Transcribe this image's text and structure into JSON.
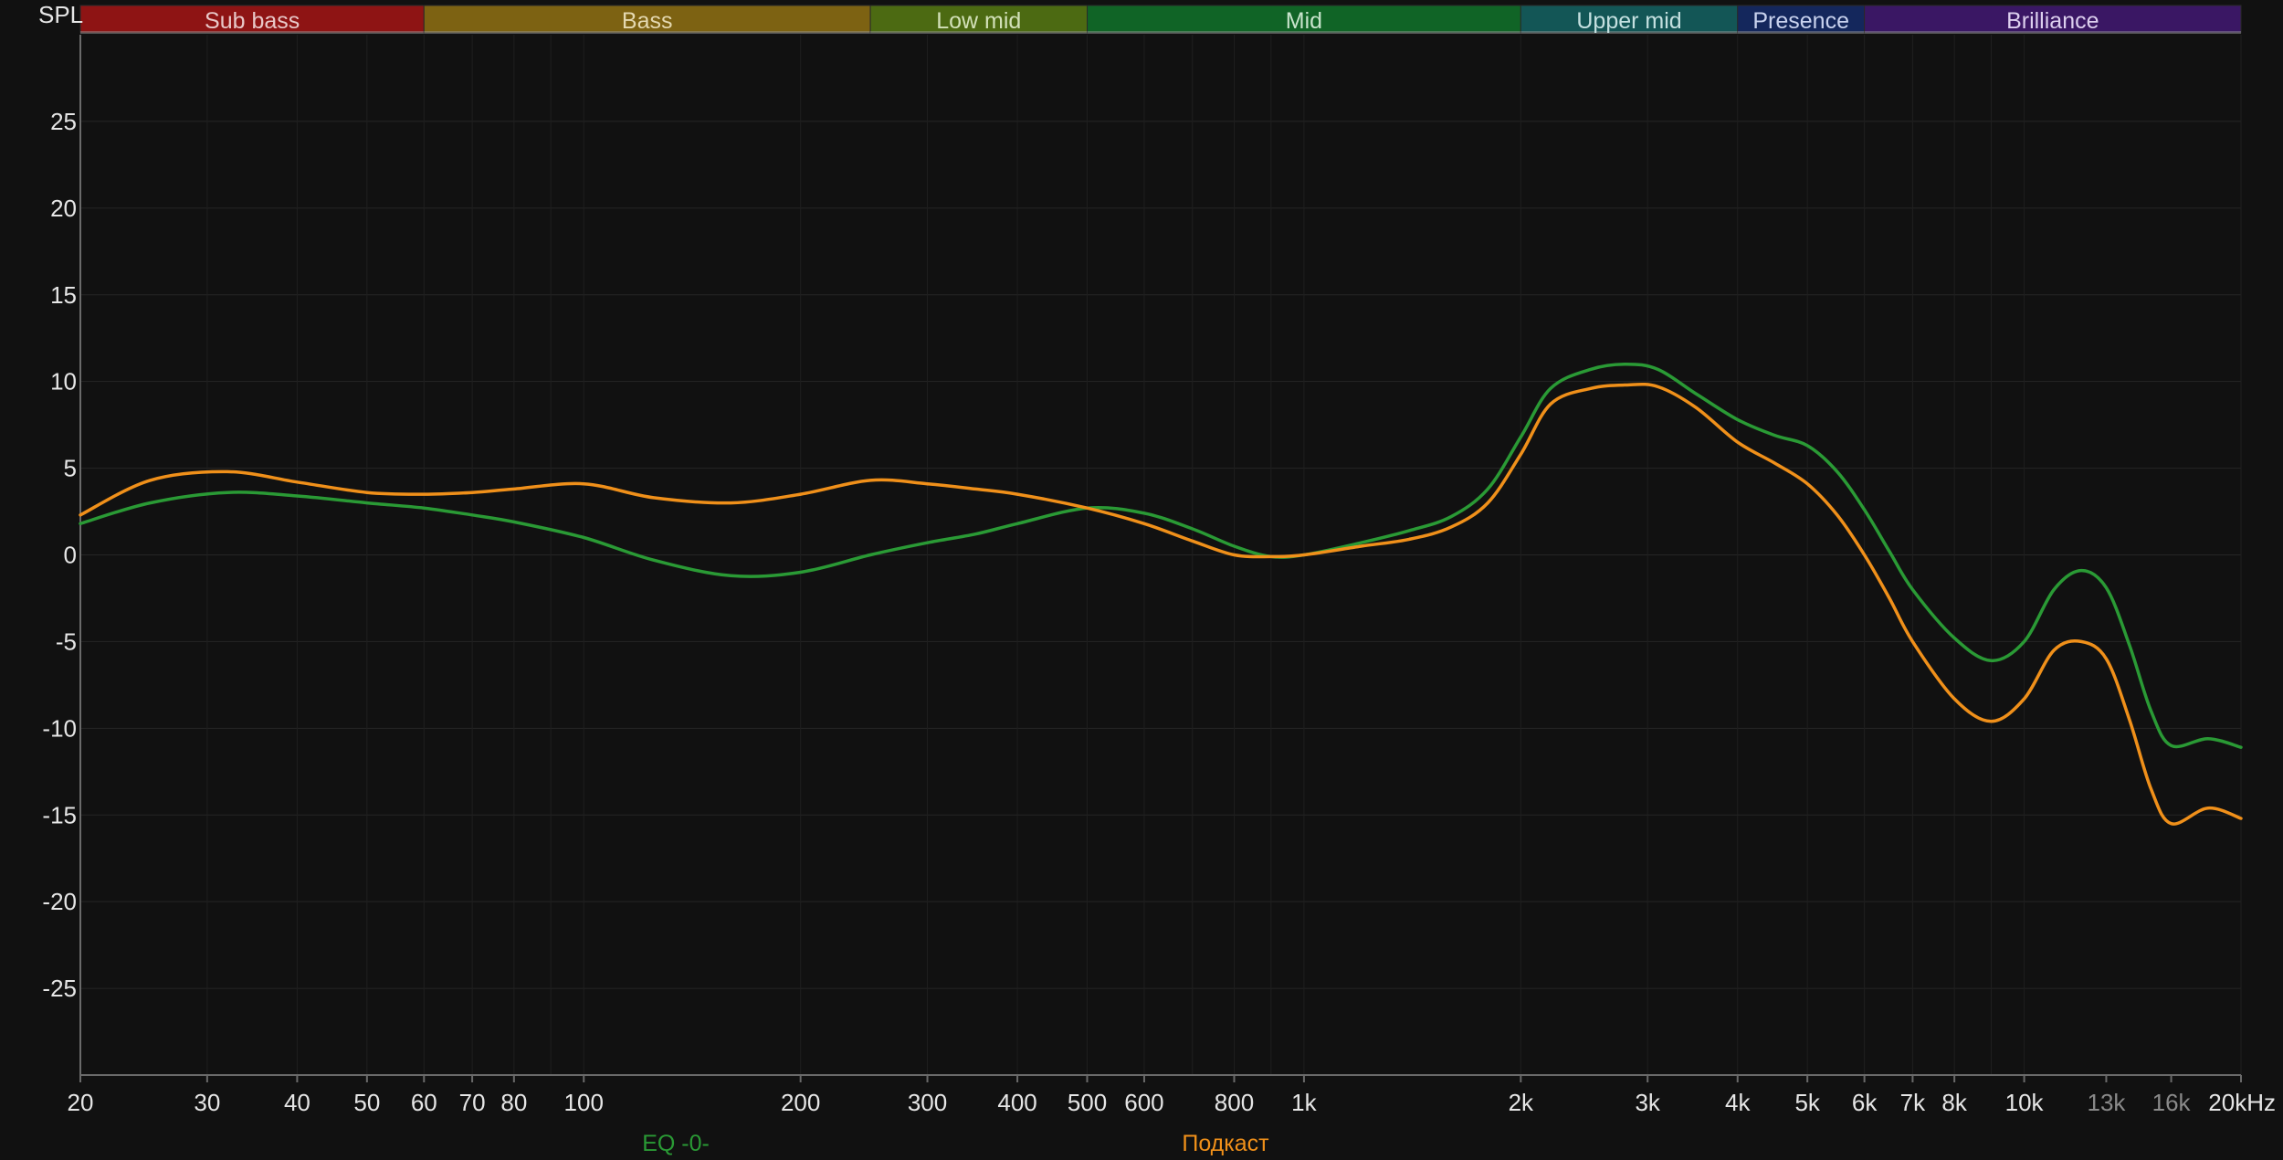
{
  "chart_data": {
    "type": "line",
    "ylabel": "SPL",
    "x_unit": "kHz",
    "x_scale": "log",
    "xlim": [
      20,
      20000
    ],
    "ylim": [
      -30,
      30
    ],
    "grid": true,
    "legend_position": "bottom",
    "y_ticks": [
      25,
      20,
      15,
      10,
      5,
      0,
      -5,
      -10,
      -15,
      -20,
      -25
    ],
    "x_ticks": [
      {
        "value": 20,
        "label": "20",
        "dim": false
      },
      {
        "value": 30,
        "label": "30",
        "dim": false
      },
      {
        "value": 40,
        "label": "40",
        "dim": false
      },
      {
        "value": 50,
        "label": "50",
        "dim": false
      },
      {
        "value": 60,
        "label": "60",
        "dim": false
      },
      {
        "value": 70,
        "label": "70",
        "dim": false
      },
      {
        "value": 80,
        "label": "80",
        "dim": false
      },
      {
        "value": 100,
        "label": "100",
        "dim": false
      },
      {
        "value": 200,
        "label": "200",
        "dim": false
      },
      {
        "value": 300,
        "label": "300",
        "dim": false
      },
      {
        "value": 400,
        "label": "400",
        "dim": false
      },
      {
        "value": 500,
        "label": "500",
        "dim": false
      },
      {
        "value": 600,
        "label": "600",
        "dim": false
      },
      {
        "value": 800,
        "label": "800",
        "dim": false
      },
      {
        "value": 1000,
        "label": "1k",
        "dim": false
      },
      {
        "value": 2000,
        "label": "2k",
        "dim": false
      },
      {
        "value": 3000,
        "label": "3k",
        "dim": false
      },
      {
        "value": 4000,
        "label": "4k",
        "dim": false
      },
      {
        "value": 5000,
        "label": "5k",
        "dim": false
      },
      {
        "value": 6000,
        "label": "6k",
        "dim": false
      },
      {
        "value": 7000,
        "label": "7k",
        "dim": false
      },
      {
        "value": 8000,
        "label": "8k",
        "dim": false
      },
      {
        "value": 10000,
        "label": "10k",
        "dim": false
      },
      {
        "value": 13000,
        "label": "13k",
        "dim": true
      },
      {
        "value": 16000,
        "label": "16k",
        "dim": true
      },
      {
        "value": 20000,
        "label": "20kHz",
        "dim": false
      }
    ],
    "bands": [
      {
        "label": "Sub bass",
        "from": 20,
        "to": 60,
        "color": "#8e1414",
        "text_color": "#e8c8c8"
      },
      {
        "label": "Bass",
        "from": 60,
        "to": 250,
        "color": "#7d6212",
        "text_color": "#e4d8b0"
      },
      {
        "label": "Low mid",
        "from": 250,
        "to": 500,
        "color": "#4c6a12",
        "text_color": "#d2e0b8"
      },
      {
        "label": "Mid",
        "from": 500,
        "to": 2000,
        "color": "#106426",
        "text_color": "#c8e4cc"
      },
      {
        "label": "Upper mid",
        "from": 2000,
        "to": 4000,
        "color": "#135656",
        "text_color": "#c4e0e0"
      },
      {
        "label": "Presence",
        "from": 4000,
        "to": 6000,
        "color": "#14275c",
        "text_color": "#c8d2ee"
      },
      {
        "label": "Brilliance",
        "from": 6000,
        "to": 20000,
        "color": "#3a1764",
        "text_color": "#dccfee"
      }
    ],
    "series": [
      {
        "name": "EQ -0-",
        "color": "#2a9a35",
        "x": [
          20,
          25,
          32,
          40,
          50,
          60,
          70,
          80,
          100,
          125,
          160,
          200,
          250,
          300,
          350,
          400,
          500,
          600,
          700,
          800,
          900,
          1000,
          1200,
          1400,
          1600,
          1800,
          2000,
          2200,
          2500,
          2800,
          3100,
          3500,
          4000,
          4500,
          5000,
          5500,
          6000,
          6500,
          7000,
          8000,
          9000,
          10000,
          11000,
          12000,
          13000,
          14000,
          15000,
          16000,
          18000,
          20000
        ],
        "y": [
          1.8,
          3.0,
          3.6,
          3.4,
          3.0,
          2.7,
          2.3,
          1.9,
          1.0,
          -0.3,
          -1.2,
          -1.0,
          0.0,
          0.7,
          1.2,
          1.8,
          2.7,
          2.4,
          1.5,
          0.5,
          -0.1,
          0.0,
          0.7,
          1.4,
          2.2,
          3.8,
          6.8,
          9.6,
          10.7,
          11.0,
          10.7,
          9.3,
          7.8,
          6.9,
          6.3,
          4.8,
          2.6,
          0.2,
          -2.0,
          -4.8,
          -6.1,
          -5.0,
          -2.0,
          -0.9,
          -1.9,
          -5.2,
          -9.0,
          -11.0,
          -10.6,
          -11.1
        ]
      },
      {
        "name": "Подкаст",
        "color": "#f0901a",
        "x": [
          20,
          25,
          32,
          40,
          50,
          60,
          70,
          80,
          100,
          125,
          160,
          200,
          250,
          300,
          350,
          400,
          500,
          600,
          700,
          800,
          900,
          1000,
          1200,
          1400,
          1600,
          1800,
          2000,
          2200,
          2500,
          2800,
          3100,
          3500,
          4000,
          4500,
          5000,
          5500,
          6000,
          6500,
          7000,
          8000,
          9000,
          10000,
          11000,
          12000,
          13000,
          14000,
          15000,
          16000,
          18000,
          20000
        ],
        "y": [
          2.3,
          4.3,
          4.8,
          4.2,
          3.6,
          3.5,
          3.6,
          3.8,
          4.1,
          3.3,
          3.0,
          3.5,
          4.3,
          4.1,
          3.8,
          3.5,
          2.7,
          1.8,
          0.8,
          0.0,
          -0.1,
          0.0,
          0.5,
          0.9,
          1.6,
          3.0,
          5.8,
          8.7,
          9.6,
          9.8,
          9.7,
          8.5,
          6.5,
          5.3,
          4.1,
          2.3,
          0.0,
          -2.5,
          -5.0,
          -8.3,
          -9.6,
          -8.3,
          -5.5,
          -5.0,
          -6.0,
          -9.5,
          -13.5,
          -15.5,
          -14.6,
          -15.2
        ]
      }
    ]
  }
}
